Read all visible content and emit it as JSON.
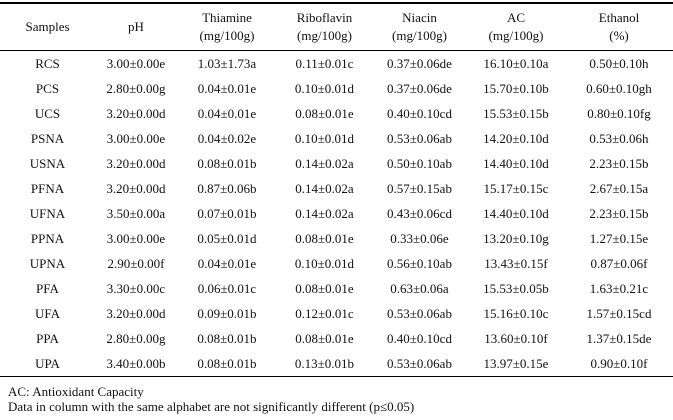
{
  "table": {
    "columns": [
      {
        "label": "Samples",
        "unit": ""
      },
      {
        "label": "pH",
        "unit": ""
      },
      {
        "label": "Thiamine",
        "unit": "(mg/100g)"
      },
      {
        "label": "Riboflavin",
        "unit": "(mg/100g)"
      },
      {
        "label": "Niacin",
        "unit": "(mg/100g)"
      },
      {
        "label": "AC",
        "unit": "(mg/100g)"
      },
      {
        "label": "Ethanol",
        "unit": "(%)"
      }
    ],
    "rows": [
      [
        "RCS",
        "3.00±0.00e",
        "1.03±1.73a",
        "0.11±0.01c",
        "0.37±0.06de",
        "16.10±0.10a",
        "0.50±0.10h"
      ],
      [
        "PCS",
        "2.80±0.00g",
        "0.04±0.01e",
        "0.10±0.01d",
        "0.37±0.06de",
        "15.70±0.10b",
        "0.60±0.10gh"
      ],
      [
        "UCS",
        "3.20±0.00d",
        "0.04±0.01e",
        "0.08±0.01e",
        "0.40±0.10cd",
        "15.53±0.15b",
        "0.80±0.10fg"
      ],
      [
        "PSNA",
        "3.00±0.00e",
        "0.04±0.02e",
        "0.10±0.01d",
        "0.53±0.06ab",
        "14.20±0.10d",
        "0.53±0.06h"
      ],
      [
        "USNA",
        "3.20±0.00d",
        "0.08±0.01b",
        "0.14±0.02a",
        "0.50±0.10ab",
        "14.40±0.10d",
        "2.23±0.15b"
      ],
      [
        "PFNA",
        "3.20±0.00d",
        "0.87±0.06b",
        "0.14±0.02a",
        "0.57±0.15ab",
        "15.17±0.15c",
        "2.67±0.15a"
      ],
      [
        "UFNA",
        "3.50±0.00a",
        "0.07±0.01b",
        "0.14±0.02a",
        "0.43±0.06cd",
        "14.40±0.10d",
        "2.23±0.15b"
      ],
      [
        "PPNA",
        "3.00±0.00e",
        "0.05±0.01d",
        "0.08±0.01e",
        "0.33±0.06e",
        "13.20±0.10g",
        "1.27±0.15e"
      ],
      [
        "UPNA",
        "2.90±0.00f",
        "0.04±0.01e",
        "0.10±0.01d",
        "0.56±0.10ab",
        "13.43±0.15f",
        "0.87±0.06f"
      ],
      [
        "PFA",
        "3.30±0.00c",
        "0.06±0.01c",
        "0.08±0.01e",
        "0.63±0.06a",
        "15.53±0.05b",
        "1.63±0.21c"
      ],
      [
        "UFA",
        "3.20±0.00d",
        "0.09±0.01b",
        "0.12±0.01c",
        "0.53±0.06ab",
        "15.16±0.10c",
        "1.57±0.15cd"
      ],
      [
        "PPA",
        "2.80±0.00g",
        "0.08±0.01b",
        "0.08±0.01e",
        "0.40±0.10cd",
        "13.60±0.10f",
        "1.37±0.15de"
      ],
      [
        "UPA",
        "3.40±0.00b",
        "0.08±0.01b",
        "0.13±0.01b",
        "0.53±0.06ab",
        "13.97±0.15e",
        "0.90±0.10f"
      ]
    ]
  },
  "footnotes": {
    "line1": "AC: Antioxidant Capacity",
    "line2": "Data in column with the same alphabet are not significantly different (p≤0.05)"
  },
  "colors": {
    "text": "#111111",
    "border": "#000000",
    "background": "#ffffff"
  }
}
